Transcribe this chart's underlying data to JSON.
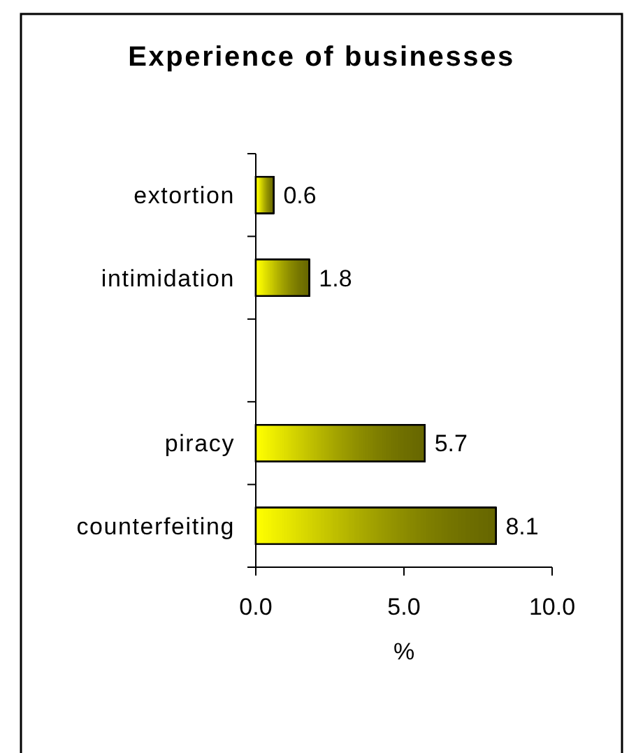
{
  "chart_data": {
    "type": "bar",
    "orientation": "horizontal",
    "title": "Experience of businesses",
    "xlabel": "%",
    "categories": [
      "extortion",
      "intimidation",
      null,
      "piracy",
      "counterfeiting"
    ],
    "values": [
      0.6,
      1.8,
      null,
      5.7,
      8.1
    ],
    "color": "#b3b300",
    "xlim": [
      0,
      10
    ],
    "xticks": [
      {
        "value": 0,
        "label": "0.0"
      },
      {
        "value": 5,
        "label": "5.0"
      },
      {
        "value": 10,
        "label": "10.0"
      }
    ],
    "data_labels": true
  }
}
